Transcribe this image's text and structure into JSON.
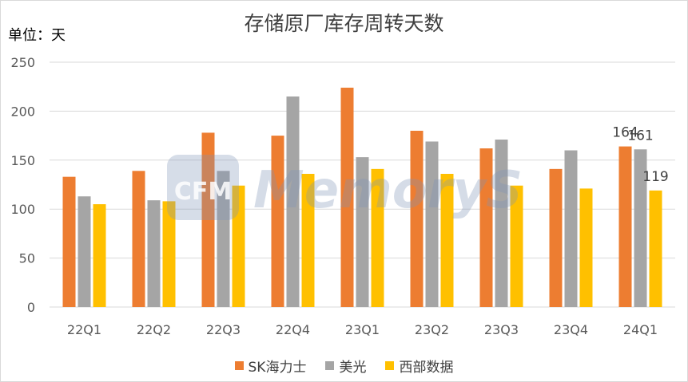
{
  "chart_data": {
    "type": "bar",
    "title": "存储原厂库存周转天数",
    "unit_label": "单位：天",
    "categories": [
      "22Q1",
      "22Q2",
      "22Q3",
      "22Q4",
      "23Q1",
      "23Q2",
      "23Q3",
      "23Q4",
      "24Q1"
    ],
    "series": [
      {
        "name": "SK海力士",
        "color": "#ED7D31",
        "values": [
          133,
          139,
          178,
          175,
          224,
          180,
          162,
          141,
          164
        ]
      },
      {
        "name": "美光",
        "color": "#A5A5A5",
        "values": [
          113,
          109,
          139,
          215,
          153,
          169,
          171,
          160,
          161
        ]
      },
      {
        "name": "西部数据",
        "color": "#FFC000",
        "values": [
          105,
          108,
          124,
          136,
          141,
          136,
          124,
          121,
          119
        ]
      }
    ],
    "ylim": [
      0,
      250
    ],
    "yticks": [
      0,
      50,
      100,
      150,
      200,
      250
    ],
    "grid": true,
    "legend_position": "bottom",
    "data_labels": [
      {
        "category": "24Q1",
        "series": "SK海力士",
        "text": "164"
      },
      {
        "category": "24Q1",
        "series": "美光",
        "text": "161"
      },
      {
        "category": "24Q1",
        "series": "西部数据",
        "text": "119"
      }
    ]
  },
  "watermark": {
    "text": "CFM",
    "subtext": "MemoryS",
    "color": "#7F95B8"
  }
}
